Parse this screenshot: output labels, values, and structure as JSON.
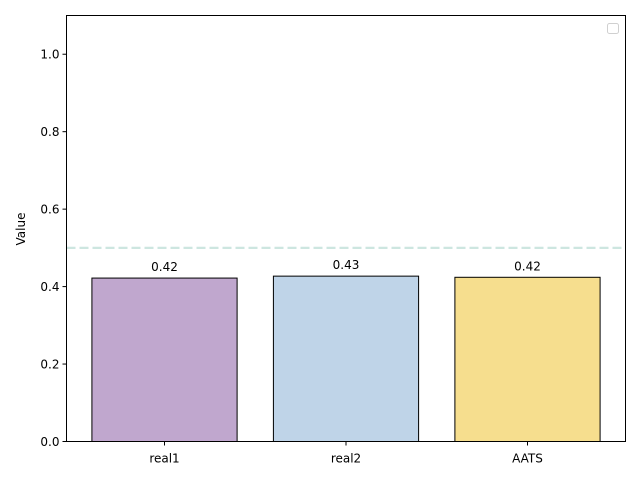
{
  "chart_data": {
    "type": "bar",
    "title": "",
    "xlabel": "",
    "ylabel": "Value",
    "categories": [
      "real1",
      "real2",
      "AATS"
    ],
    "values": [
      0.422,
      0.427,
      0.424
    ],
    "value_labels": [
      "0.42",
      "0.43",
      "0.42"
    ],
    "colors": [
      "#c0a7ce",
      "#bfd4e8",
      "#f6de8e"
    ],
    "edge_color": "#000000",
    "ylim": [
      0,
      1.1
    ],
    "yticks": [
      0.0,
      0.2,
      0.4,
      0.6,
      0.8,
      1.0
    ],
    "ytick_labels": [
      "0.0",
      "0.2",
      "0.4",
      "0.6",
      "0.8",
      "1.0"
    ],
    "reference_line": {
      "value": 0.5,
      "color": "#cde6e0",
      "style": "dashed"
    },
    "legend": {
      "placement": "top-right",
      "entries": []
    },
    "grid": false
  }
}
